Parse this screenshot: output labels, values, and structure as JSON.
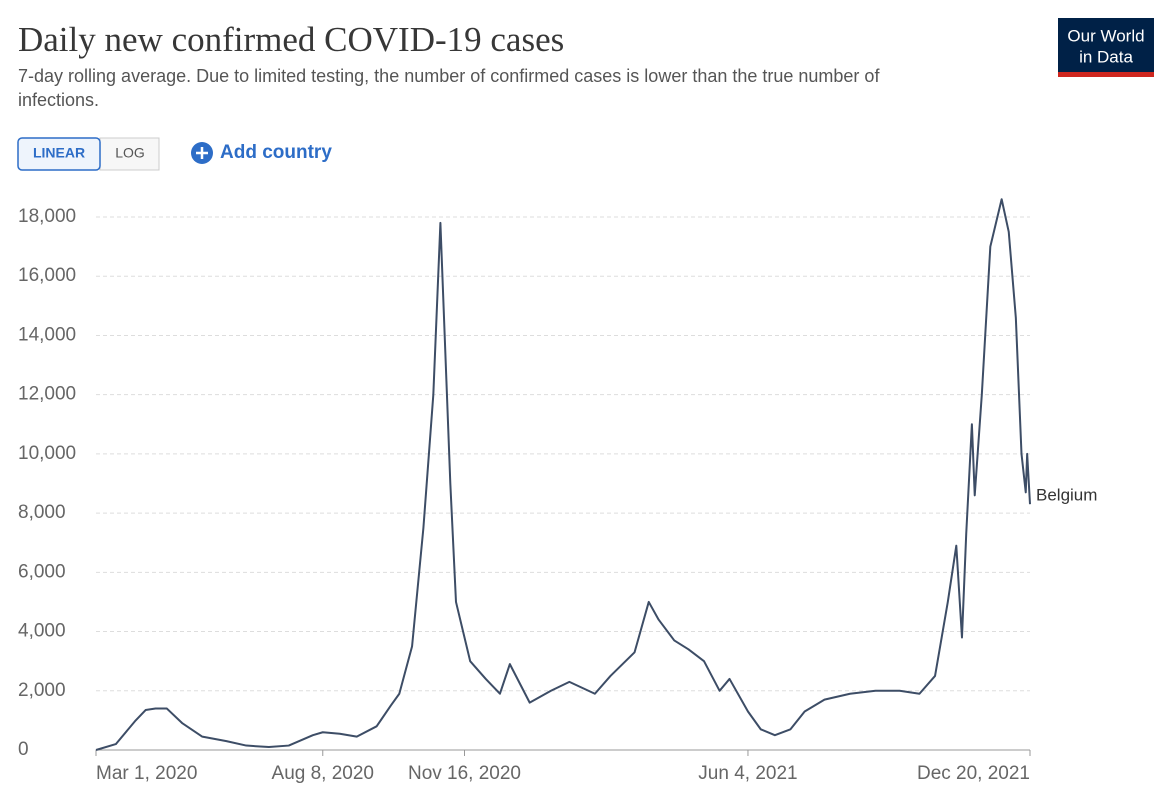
{
  "header": {
    "subtitle_lines": [
      "7-day rolling average. Due to limited testing, the number of confirmed cases is lower than the true number of",
      "infections."
    ]
  },
  "controls": {
    "scale_buttons": [
      "LINEAR",
      "LOG"
    ],
    "add_country": "Add country"
  },
  "logo": [
    "Our World",
    "in Data"
  ],
  "chart_data": {
    "type": "line",
    "title": "Daily new confirmed COVID-19 cases",
    "x": [
      "2020-03-01",
      "2020-03-15",
      "2020-03-29",
      "2020-04-05",
      "2020-04-12",
      "2020-04-20",
      "2020-05-01",
      "2020-05-15",
      "2020-06-01",
      "2020-06-15",
      "2020-07-01",
      "2020-07-15",
      "2020-08-01",
      "2020-08-08",
      "2020-08-20",
      "2020-09-01",
      "2020-09-15",
      "2020-09-25",
      "2020-10-01",
      "2020-10-10",
      "2020-10-18",
      "2020-10-25",
      "2020-10-30",
      "2020-11-06",
      "2020-11-10",
      "2020-11-20",
      "2020-12-01",
      "2020-12-11",
      "2020-12-18",
      "2021-01-01",
      "2021-01-16",
      "2021-01-29",
      "2021-02-16",
      "2021-02-27",
      "2021-03-16",
      "2021-03-26",
      "2021-04-02",
      "2021-04-13",
      "2021-04-23",
      "2021-05-04",
      "2021-05-15",
      "2021-05-22",
      "2021-06-04",
      "2021-06-13",
      "2021-06-23",
      "2021-07-04",
      "2021-07-14",
      "2021-07-28",
      "2021-08-15",
      "2021-09-02",
      "2021-09-19",
      "2021-10-03",
      "2021-10-14",
      "2021-10-23",
      "2021-10-29",
      "2021-11-02",
      "2021-11-05",
      "2021-11-09",
      "2021-11-11",
      "2021-11-16",
      "2021-11-22",
      "2021-11-30",
      "2021-12-05",
      "2021-12-10",
      "2021-12-14",
      "2021-12-17",
      "2021-12-18",
      "2021-12-20"
    ],
    "series": [
      {
        "name": "Belgium",
        "color": "#3d4d66",
        "values": [
          0,
          200,
          1000,
          1350,
          1400,
          1400,
          900,
          450,
          300,
          150,
          100,
          150,
          500,
          600,
          550,
          450,
          800,
          1500,
          1900,
          3500,
          7500,
          12000,
          17800,
          9000,
          5000,
          3000,
          2400,
          1900,
          2900,
          1600,
          2000,
          2300,
          1900,
          2500,
          3300,
          5000,
          4400,
          3700,
          3400,
          3000,
          2000,
          2400,
          1300,
          700,
          500,
          700,
          1300,
          1700,
          1900,
          2000,
          2000,
          1900,
          2500,
          5000,
          6900,
          3800,
          7300,
          11000,
          8600,
          12000,
          17000,
          18600,
          17500,
          14600,
          10000,
          8700,
          10000,
          8300
        ]
      }
    ],
    "xlim": [
      "2020-03-01",
      "2021-12-20"
    ],
    "xticks": [
      {
        "value": "2020-03-01",
        "label": "Mar 1, 2020"
      },
      {
        "value": "2020-08-08",
        "label": "Aug 8, 2020"
      },
      {
        "value": "2020-11-16",
        "label": "Nov 16, 2020"
      },
      {
        "value": "2021-06-04",
        "label": "Jun 4, 2021"
      },
      {
        "value": "2021-12-20",
        "label": "Dec 20, 2021"
      }
    ],
    "ylim": [
      0,
      18000
    ],
    "yticks": [
      0,
      {
        "value": 2000,
        "label": "2,000"
      },
      {
        "value": 4000,
        "label": "4,000"
      },
      {
        "value": 6000,
        "label": "6,000"
      },
      {
        "value": 8000,
        "label": "8,000"
      },
      {
        "value": 10000,
        "label": "10,000"
      },
      {
        "value": 12000,
        "label": "12,000"
      },
      {
        "value": 14000,
        "label": "14,000"
      },
      {
        "value": 16000,
        "label": "16,000"
      },
      {
        "value": 18000,
        "label": "18,000"
      }
    ],
    "grid": true,
    "log_scale": false
  }
}
